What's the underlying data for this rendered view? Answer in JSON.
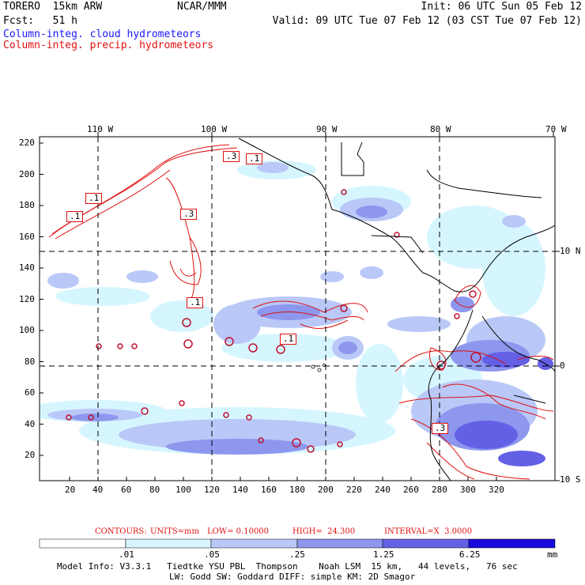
{
  "header": {
    "model": "TORERO  15km ARW",
    "org": "NCAR/MMM",
    "init": "Init: 06 UTC Sun 05 Feb 12",
    "fcst": "Fcst:   51 h",
    "valid": "Valid: 09 UTC Tue 07 Feb 12 (03 CST Tue 07 Feb 12)",
    "field1": "Column-integ. cloud hydrometeors",
    "field2": "Column-integ. precip. hydrometeors"
  },
  "colors": {
    "cloud": "#1a1aff",
    "precip": "#e01010",
    "level1": "#d6f6ff",
    "level2": "#b9c8f7",
    "level3": "#8d97ee",
    "level4": "#6460e6",
    "level5": "#3c30de",
    "level6": "#1a0adb"
  },
  "lon_labels": [
    "110 W",
    "100 W",
    "90 W",
    "80 W",
    "70 W"
  ],
  "lat_labels": [
    "10 N",
    "0",
    "10 S"
  ],
  "y_ticks": [
    "220",
    "200",
    "180",
    "160",
    "140",
    "120",
    "100",
    "80",
    "60",
    "40",
    "20"
  ],
  "x_ticks": [
    "20",
    "40",
    "60",
    "80",
    "100",
    "120",
    "140",
    "160",
    "180",
    "200",
    "220",
    "240",
    "260",
    "280",
    "300",
    "320"
  ],
  "contour_labels": [
    ".1",
    ".1",
    ".3",
    ".1",
    ".3",
    ".1",
    ".1",
    ".3"
  ],
  "contours": {
    "title": "CONTOURS:",
    "units": "UNITS=mm",
    "low": "LOW= 0.10000",
    "high": "HIGH=  24.300",
    "interval": "INTERVAL=X  3.0000"
  },
  "colorbar": {
    "labels": [
      ".01",
      ".05",
      ".25",
      "1.25",
      "6.25"
    ],
    "unit": "mm"
  },
  "footer": {
    "line1": "Model Info: V3.3.1   Tiedtke YSU PBL  Thompson    Noah LSM  15 km,   44 levels,   76 sec",
    "line2": "LW: Godd SW: Goddard DIFF: simple KM: 2D Smagor"
  }
}
